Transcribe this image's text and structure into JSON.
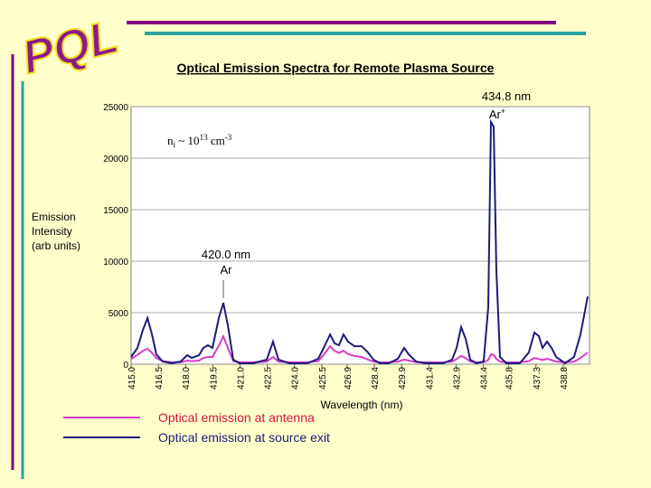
{
  "logo": "PQL",
  "chart_data": {
    "type": "line",
    "title": "Optical Emission Spectra for Remote Plasma Source",
    "x_label": "Wavelength (nm)",
    "y_label_lines": [
      "Emission",
      "Intensity",
      "(arb units)"
    ],
    "xlim": [
      415,
      440.25
    ],
    "ylim": [
      0,
      25000
    ],
    "xticks": [
      {
        "value": 415,
        "label": "415.0"
      },
      416.5,
      {
        "value": 418,
        "label": "418.0"
      },
      419.5,
      {
        "value": 421,
        "label": "421.0"
      },
      422.5,
      {
        "value": 424,
        "label": "424.0"
      },
      425.5,
      426.9,
      428.4,
      429.9,
      431.4,
      432.9,
      434.4,
      435.8,
      437.3,
      438.8
    ],
    "yticks": [
      0,
      5000,
      10000,
      15000,
      20000,
      25000
    ],
    "grid": true,
    "x": [
      415.0,
      415.35,
      415.65,
      415.9,
      416.15,
      416.39,
      416.74,
      417.24,
      417.74,
      418.09,
      418.34,
      418.74,
      418.98,
      419.23,
      419.48,
      419.83,
      420.08,
      420.33,
      420.63,
      420.98,
      421.72,
      422.47,
      422.82,
      423.12,
      423.72,
      424.71,
      425.31,
      425.61,
      425.96,
      426.21,
      426.45,
      426.7,
      426.95,
      427.3,
      427.7,
      428.05,
      428.35,
      428.7,
      429.19,
      429.69,
      430.04,
      430.29,
      430.69,
      431.19,
      432.18,
      432.68,
      432.93,
      433.18,
      433.43,
      433.68,
      434.02,
      434.42,
      434.67,
      434.82,
      434.97,
      435.12,
      435.32,
      435.67,
      436.41,
      436.91,
      437.21,
      437.46,
      437.66,
      437.91,
      438.16,
      438.41,
      438.9,
      439.4,
      439.75,
      440.15
    ],
    "series": [
      {
        "name": "Optical emission at source exit",
        "color": "#1c1c7a",
        "label_color": "#1c1c7a",
        "values": [
          700,
          1580,
          3330,
          4470,
          2890,
          960,
          260,
          90,
          260,
          880,
          610,
          880,
          1580,
          1840,
          1580,
          4470,
          5960,
          3770,
          440,
          90,
          90,
          440,
          2190,
          440,
          90,
          90,
          530,
          1580,
          2890,
          2020,
          1840,
          2890,
          2190,
          1750,
          1750,
          1140,
          440,
          90,
          90,
          530,
          1580,
          960,
          260,
          90,
          90,
          440,
          1580,
          3600,
          2460,
          440,
          90,
          260,
          5530,
          23500,
          23070,
          9030,
          700,
          90,
          90,
          1140,
          3070,
          2720,
          1580,
          2190,
          1580,
          700,
          90,
          700,
          2890,
          6580
        ]
      },
      {
        "name": "Optical emission at antenna",
        "color": "#d63cc8",
        "label_color": "#d4143c",
        "values": [
          500,
          900,
          1300,
          1500,
          1100,
          600,
          300,
          180,
          180,
          350,
          300,
          350,
          600,
          700,
          700,
          1800,
          2700,
          1600,
          300,
          180,
          180,
          250,
          700,
          250,
          180,
          180,
          300,
          900,
          1750,
          1300,
          1100,
          1300,
          1000,
          800,
          700,
          450,
          250,
          180,
          180,
          250,
          450,
          350,
          200,
          180,
          180,
          250,
          500,
          800,
          600,
          250,
          180,
          180,
          400,
          960,
          900,
          500,
          250,
          180,
          180,
          300,
          600,
          500,
          400,
          530,
          400,
          250,
          180,
          250,
          600,
          1140
        ]
      }
    ],
    "peak_labels": [
      {
        "wavelength": "434.8 nm",
        "species": "Ar",
        "charge": "+"
      },
      {
        "wavelength": "420.0 nm",
        "species": "Ar"
      }
    ],
    "density_note": {
      "symbol": "n",
      "subscript": "i",
      "text": " ~ 10",
      "exponent": "13",
      "unit": " cm",
      "unit_exponent": "-3"
    }
  }
}
